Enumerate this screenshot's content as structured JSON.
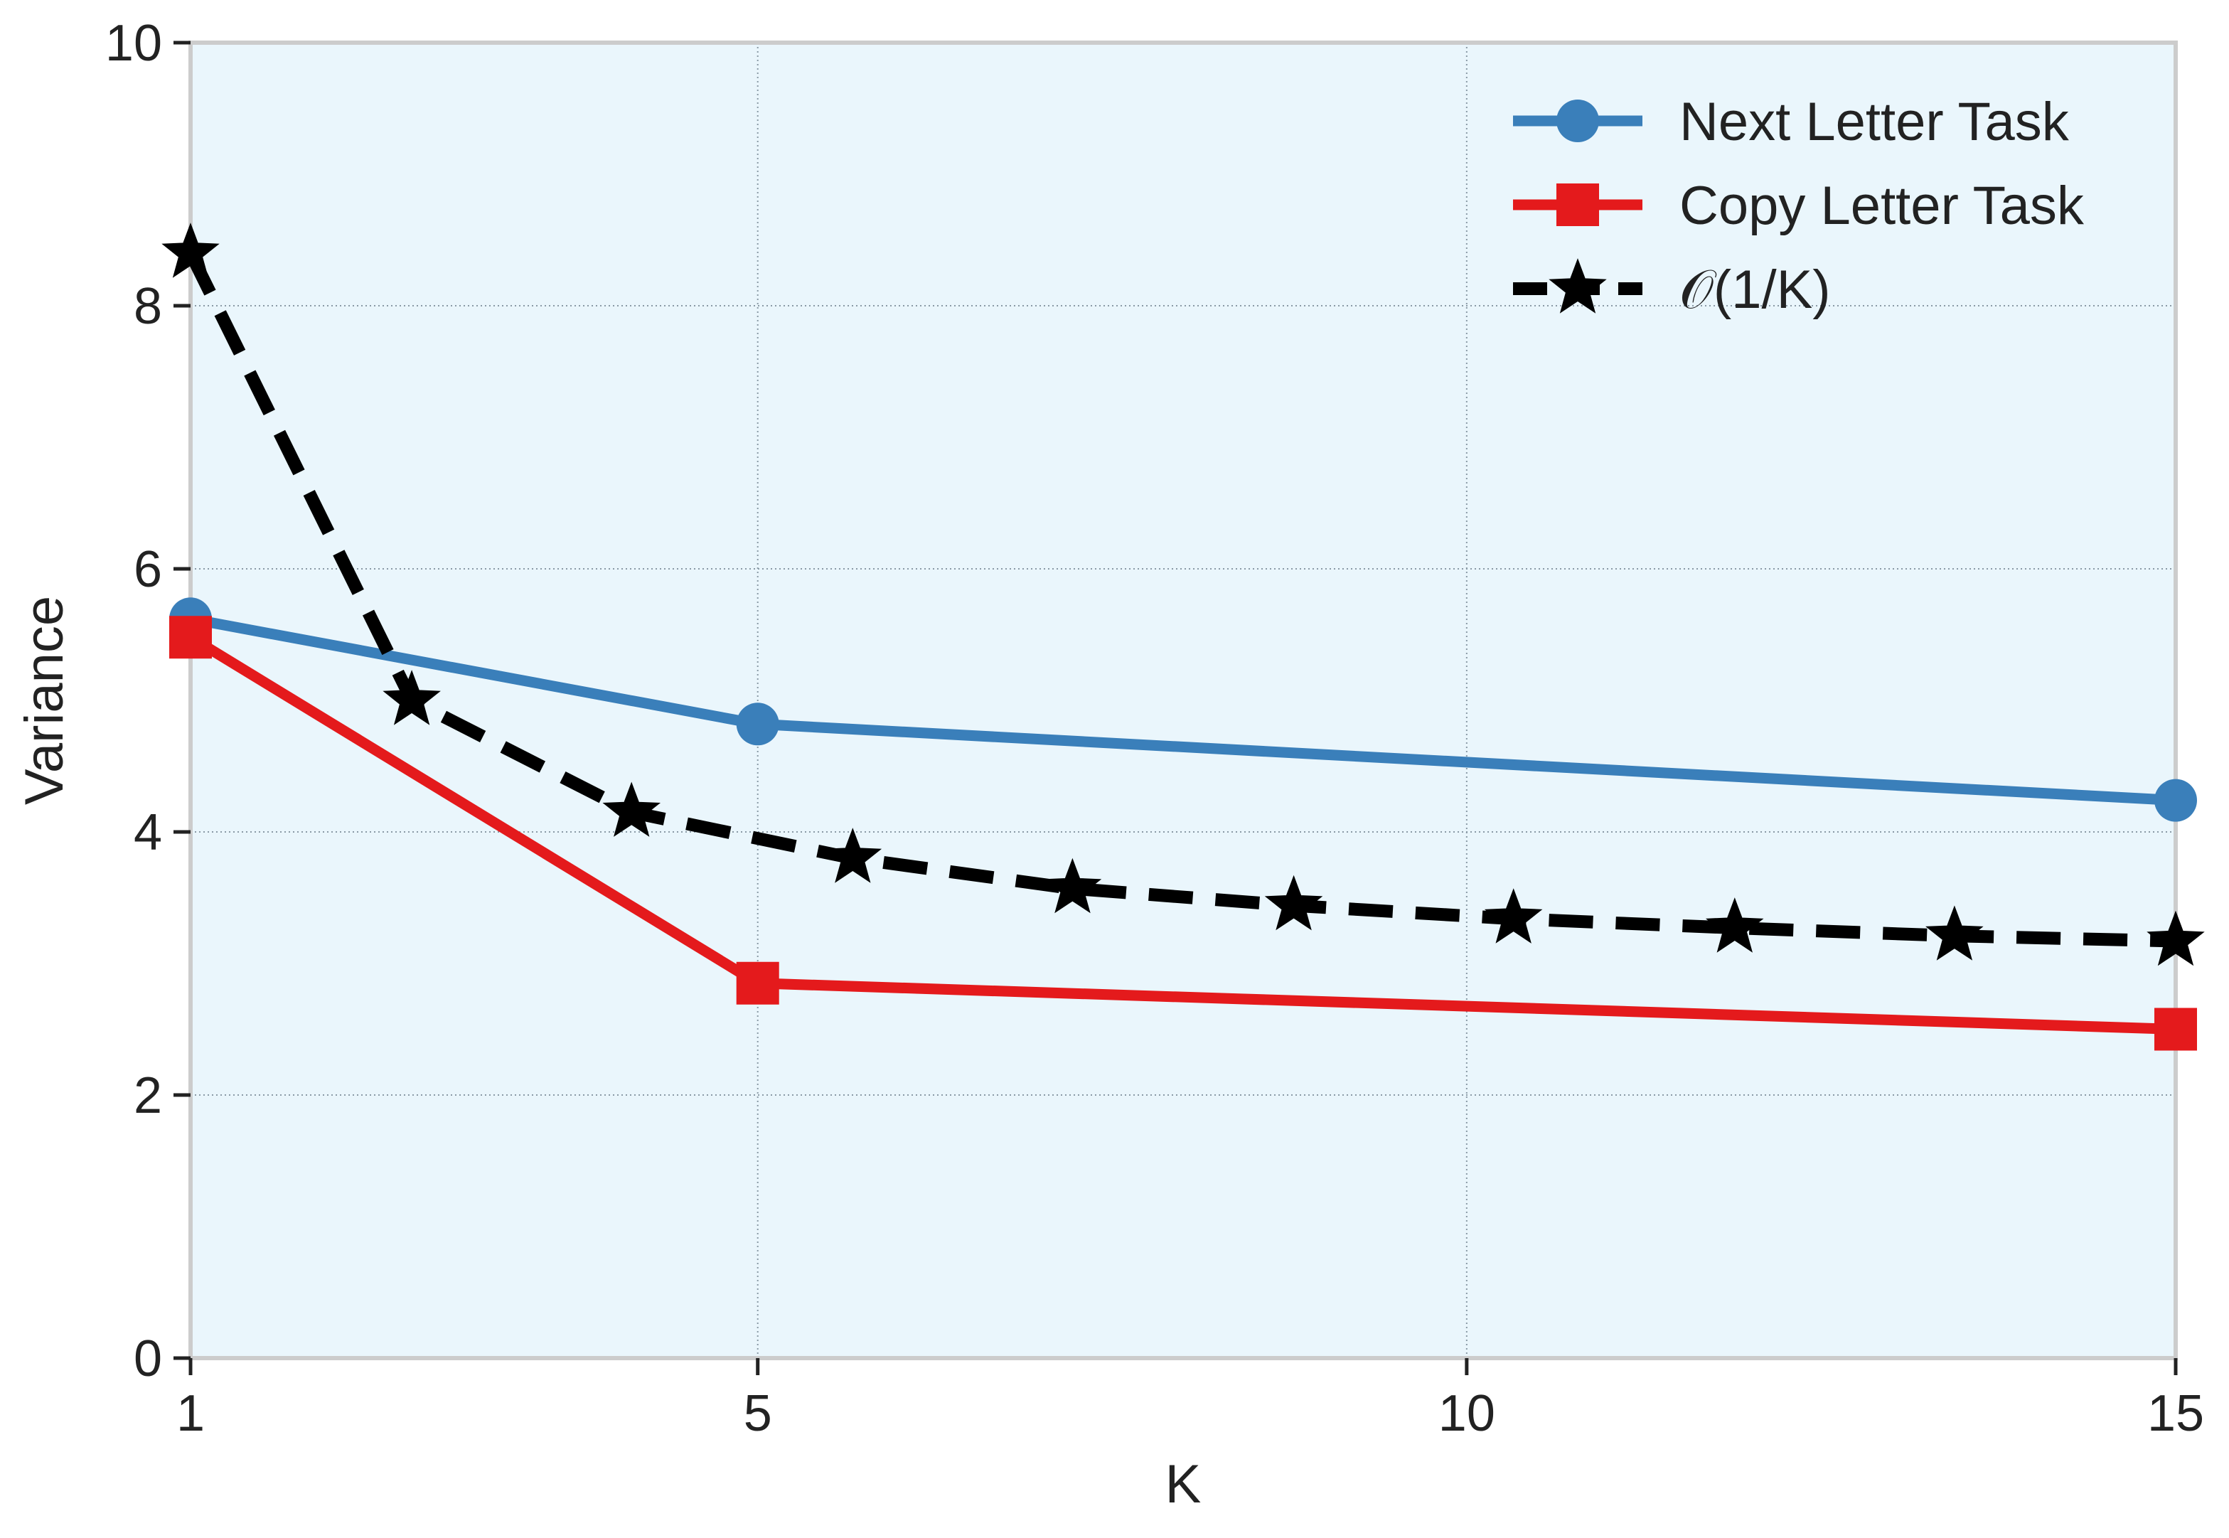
{
  "chart_data": {
    "type": "line",
    "xlabel": "K",
    "ylabel": "Variance",
    "xlim": [
      1,
      15
    ],
    "ylim": [
      0,
      10
    ],
    "xticks": [
      1,
      5,
      10,
      15
    ],
    "yticks": [
      0,
      2,
      4,
      6,
      8,
      10
    ],
    "grid": true,
    "legend_position": "top-right",
    "background_color": "#eaf6fc",
    "series": [
      {
        "name": "Next Letter Task",
        "color": "#3a7fba",
        "marker": "circle",
        "line_style": "solid",
        "x": [
          1,
          5,
          15
        ],
        "y": [
          5.62,
          4.82,
          4.24
        ]
      },
      {
        "name": "Copy Letter Task",
        "color": "#e41a1c",
        "marker": "square",
        "line_style": "solid",
        "x": [
          1,
          5,
          15
        ],
        "y": [
          5.48,
          2.85,
          2.5
        ]
      },
      {
        "name": "𝒪(1/K)",
        "color": "#000000",
        "marker": "star",
        "line_style": "dashed",
        "x": [
          1,
          2.56,
          4.11,
          5.67,
          7.22,
          8.78,
          10.33,
          11.89,
          13.44,
          15
        ],
        "y": [
          8.4,
          5.0,
          4.15,
          3.8,
          3.57,
          3.44,
          3.34,
          3.27,
          3.21,
          3.17
        ]
      }
    ]
  }
}
